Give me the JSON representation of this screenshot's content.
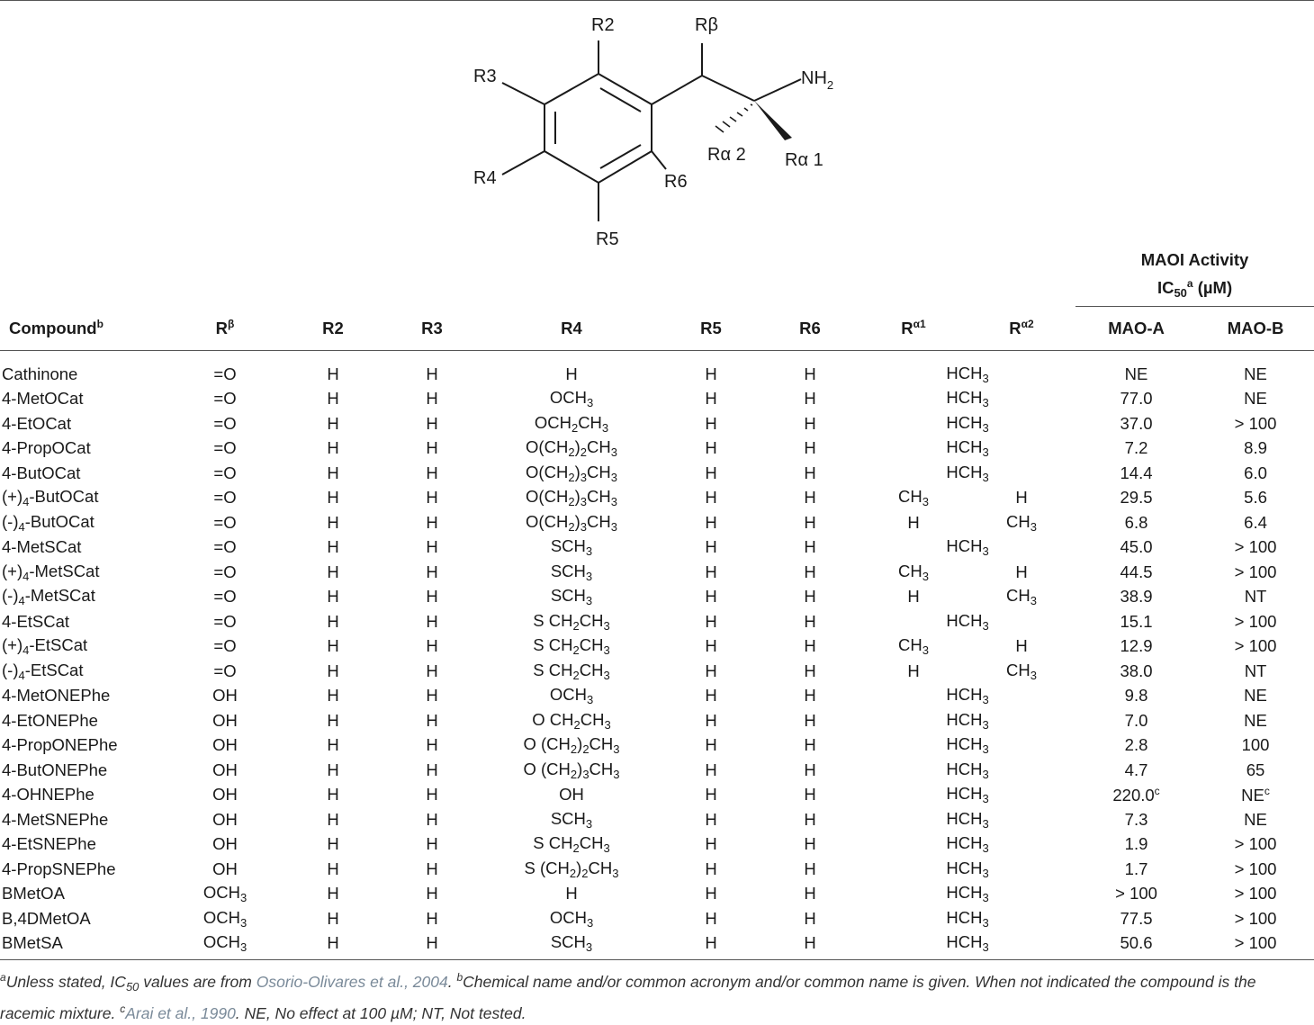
{
  "structure_labels": {
    "r2": "R2",
    "r3": "R3",
    "r4": "R4",
    "r5": "R5",
    "r6": "R6",
    "rbeta": "Rβ",
    "nh2": "NH",
    "nh2_sub": "2",
    "ralpha2": "Rα 2",
    "ralpha1": "Rα 1"
  },
  "table": {
    "group_header": "MAOI Activity",
    "group_sub_main": "IC",
    "group_sub_sub": "50",
    "group_sub_sup": "a",
    "group_sub_unit": " (µM)",
    "columns": {
      "compound": "Compound",
      "compound_sup": "b",
      "rbeta": "R",
      "rbeta_sup": "β",
      "r2": "R2",
      "r3": "R3",
      "r4": "R4",
      "r5": "R5",
      "r6": "R6",
      "ralpha1": "R",
      "ralpha1_sup": "α1",
      "ralpha2": "R",
      "ralpha2_sup": "α2",
      "maoa": "MAO-A",
      "maob": "MAO-B"
    },
    "rows": [
      {
        "compound": "Cathinone",
        "rbeta": "=O",
        "r2": "H",
        "r3": "H",
        "r4": "H",
        "r5": "H",
        "r6": "H",
        "ralpha": "HCH3",
        "maoa": "NE",
        "maob": "NE"
      },
      {
        "compound": "4-MetOCat",
        "rbeta": "=O",
        "r2": "H",
        "r3": "H",
        "r4": "OCH3",
        "r5": "H",
        "r6": "H",
        "ralpha": "HCH3",
        "maoa": "77.0",
        "maob": "NE"
      },
      {
        "compound": "4-EtOCat",
        "rbeta": "=O",
        "r2": "H",
        "r3": "H",
        "r4": "OCH2CH3",
        "r5": "H",
        "r6": "H",
        "ralpha": "HCH3",
        "maoa": "37.0",
        "maob": "> 100"
      },
      {
        "compound": "4-PropOCat",
        "rbeta": "=O",
        "r2": "H",
        "r3": "H",
        "r4": "O(CH2)2CH3",
        "r5": "H",
        "r6": "H",
        "ralpha": "HCH3",
        "maoa": "7.2",
        "maob": "8.9"
      },
      {
        "compound": "4-ButOCat",
        "rbeta": "=O",
        "r2": "H",
        "r3": "H",
        "r4": "O(CH2)3CH3",
        "r5": "H",
        "r6": "H",
        "ralpha": "HCH3",
        "maoa": "14.4",
        "maob": "6.0"
      },
      {
        "compound": "(+)4-ButOCat",
        "rbeta": "=O",
        "r2": "H",
        "r3": "H",
        "r4": "O(CH2)3CH3",
        "r5": "H",
        "r6": "H",
        "ralpha1": "CH3",
        "ralpha2": "H",
        "maoa": "29.5",
        "maob": "5.6"
      },
      {
        "compound": "(-)4-ButOCat",
        "rbeta": "=O",
        "r2": "H",
        "r3": "H",
        "r4": "O(CH2)3CH3",
        "r5": "H",
        "r6": "H",
        "ralpha1": "H",
        "ralpha2": "CH3",
        "maoa": "6.8",
        "maob": "6.4"
      },
      {
        "compound": "4-MetSCat",
        "rbeta": "=O",
        "r2": "H",
        "r3": "H",
        "r4": "SCH3",
        "r5": "H",
        "r6": "H",
        "ralpha": "HCH3",
        "maoa": "45.0",
        "maob": "> 100"
      },
      {
        "compound": "(+)4-MetSCat",
        "rbeta": "=O",
        "r2": "H",
        "r3": "H",
        "r4": "SCH3",
        "r5": "H",
        "r6": "H",
        "ralpha1": "CH3",
        "ralpha2": "H",
        "maoa": "44.5",
        "maob": "> 100"
      },
      {
        "compound": "(-)4-MetSCat",
        "rbeta": "=O",
        "r2": "H",
        "r3": "H",
        "r4": "SCH3",
        "r5": "H",
        "r6": "H",
        "ralpha1": "H",
        "ralpha2": "CH3",
        "maoa": "38.9",
        "maob": "NT"
      },
      {
        "compound": "4-EtSCat",
        "rbeta": "=O",
        "r2": "H",
        "r3": "H",
        "r4": "S CH2CH3",
        "r5": "H",
        "r6": "H",
        "ralpha": "HCH3",
        "maoa": "15.1",
        "maob": "> 100"
      },
      {
        "compound": "(+)4-EtSCat",
        "rbeta": "=O",
        "r2": "H",
        "r3": "H",
        "r4": "S CH2CH3",
        "r5": "H",
        "r6": "H",
        "ralpha1": "CH3",
        "ralpha2": "H",
        "maoa": "12.9",
        "maob": "> 100"
      },
      {
        "compound": "(-)4-EtSCat",
        "rbeta": "=O",
        "r2": "H",
        "r3": "H",
        "r4": "S CH2CH3",
        "r5": "H",
        "r6": "H",
        "ralpha1": "H",
        "ralpha2": "CH3",
        "maoa": "38.0",
        "maob": "NT"
      },
      {
        "compound": "4-MetONEPhe",
        "rbeta": "OH",
        "r2": "H",
        "r3": "H",
        "r4": "OCH3",
        "r5": "H",
        "r6": "H",
        "ralpha": "HCH3",
        "maoa": "9.8",
        "maob": "NE"
      },
      {
        "compound": "4-EtONEPhe",
        "rbeta": "OH",
        "r2": "H",
        "r3": "H",
        "r4": "O CH2CH3",
        "r5": "H",
        "r6": "H",
        "ralpha": "HCH3",
        "maoa": "7.0",
        "maob": "NE"
      },
      {
        "compound": "4-PropONEPhe",
        "rbeta": "OH",
        "r2": "H",
        "r3": "H",
        "r4": "O (CH2)2CH3",
        "r5": "H",
        "r6": "H",
        "ralpha": "HCH3",
        "maoa": "2.8",
        "maob": "100"
      },
      {
        "compound": "4-ButONEPhe",
        "rbeta": "OH",
        "r2": "H",
        "r3": "H",
        "r4": "O (CH2)3CH3",
        "r5": "H",
        "r6": "H",
        "ralpha": "HCH3",
        "maoa": "4.7",
        "maob": "65"
      },
      {
        "compound": "4-OHNEPhe",
        "rbeta": "OH",
        "r2": "H",
        "r3": "H",
        "r4": "OH",
        "r5": "H",
        "r6": "H",
        "ralpha": "HCH3",
        "maoa": "220.0^c",
        "maob": "NE^c"
      },
      {
        "compound": "4-MetSNEPhe",
        "rbeta": "OH",
        "r2": "H",
        "r3": "H",
        "r4": "SCH3",
        "r5": "H",
        "r6": "H",
        "ralpha": "HCH3",
        "maoa": "7.3",
        "maob": "NE"
      },
      {
        "compound": "4-EtSNEPhe",
        "rbeta": "OH",
        "r2": "H",
        "r3": "H",
        "r4": "S CH2CH3",
        "r5": "H",
        "r6": "H",
        "ralpha": "HCH3",
        "maoa": "1.9",
        "maob": "> 100"
      },
      {
        "compound": "4-PropSNEPhe",
        "rbeta": "OH",
        "r2": "H",
        "r3": "H",
        "r4": "S (CH2)2CH3",
        "r5": "H",
        "r6": "H",
        "ralpha": "HCH3",
        "maoa": "1.7",
        "maob": "> 100"
      },
      {
        "compound": "BMetOA",
        "rbeta": "OCH3",
        "r2": "H",
        "r3": "H",
        "r4": "H",
        "r5": "H",
        "r6": "H",
        "ralpha": "HCH3",
        "maoa": "> 100",
        "maob": "> 100"
      },
      {
        "compound": "B,4DMetOA",
        "rbeta": "OCH3",
        "r2": "H",
        "r3": "H",
        "r4": "OCH3",
        "r5": "H",
        "r6": "H",
        "ralpha": "HCH3",
        "maoa": "77.5",
        "maob": "> 100"
      },
      {
        "compound": "BMetSA",
        "rbeta": "OCH3",
        "r2": "H",
        "r3": "H",
        "r4": "SCH3",
        "r5": "H",
        "r6": "H",
        "ralpha": "HCH3",
        "maoa": "50.6",
        "maob": "> 100"
      }
    ]
  },
  "footnote": {
    "a_mark": "a",
    "a_text": "Unless stated, IC",
    "a_sub": "50",
    "a_text2": " values are from ",
    "a_ref": "Osorio-Olivares et al., 2004",
    "a_end": ". ",
    "b_mark": "b",
    "b_text": "Chemical name and/or common acronym and/or common name is given. When not indicated the compound is the racemic mixture. ",
    "c_mark": "c",
    "c_ref": "Arai et al., 1990",
    "c_text": ". NE, No effect at 100 µM; NT, Not tested."
  }
}
